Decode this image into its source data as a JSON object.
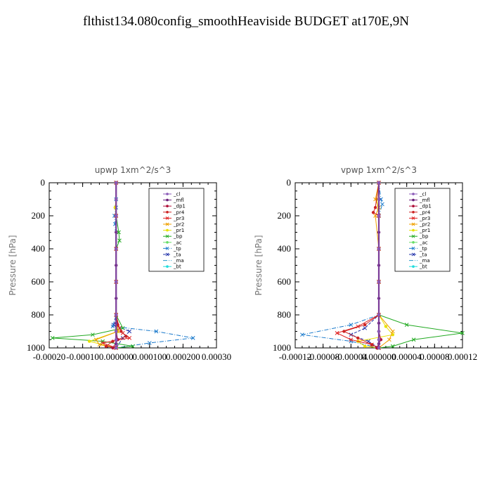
{
  "figure": {
    "title": "flthist134.080config_smoothHeaviside  BUDGET at170E,9N"
  },
  "chart_data": [
    {
      "type": "line",
      "title": "upwp   1xm^2/s^3",
      "ylabel": "Pressure [hPa]",
      "xlabel": "",
      "y_reversed": true,
      "ylim": [
        0,
        1000
      ],
      "xlim": [
        -0.0002,
        0.0003
      ],
      "xtick_labels": [
        "-0.00020",
        "-0.00010",
        "0.000000",
        "0.000100",
        "0.000200",
        "0.00030"
      ],
      "ytick_labels": [
        "0",
        "200",
        "400",
        "600",
        "800",
        "1000"
      ],
      "grid": false,
      "legend_position": "top-right",
      "series": [
        {
          "name": "_cl",
          "color": "#8a5ab8",
          "marker": "circle",
          "style": "solid",
          "y": [
            0,
            100,
            200,
            400,
            600,
            800,
            900,
            950,
            1000
          ],
          "x": [
            0,
            0,
            0,
            0,
            0,
            0,
            0,
            0,
            0
          ]
        },
        {
          "name": "_mfl",
          "color": "#6a1f7a",
          "marker": "circle",
          "style": "solid",
          "y": [
            0,
            100,
            200,
            300,
            400,
            500,
            600,
            700,
            800,
            850,
            900,
            950,
            975,
            1000
          ],
          "x": [
            0,
            0,
            0,
            0,
            0,
            0,
            0,
            0,
            0,
            0,
            0,
            0,
            0,
            0
          ]
        },
        {
          "name": "_dp1",
          "color": "#b0103a",
          "marker": "circle",
          "style": "solid",
          "y": [
            0,
            200,
            400,
            600,
            800,
            900,
            950,
            1000
          ],
          "x": [
            0,
            0,
            0,
            0,
            0,
            0,
            5e-06,
            -1e-05
          ]
        },
        {
          "name": "_pr4",
          "color": "#cc2222",
          "marker": "circle",
          "style": "solid",
          "y": [
            0,
            200,
            400,
            600,
            800,
            860,
            900,
            930,
            960,
            990,
            1000
          ],
          "x": [
            0,
            0,
            0,
            0,
            0,
            5e-06,
            1.5e-05,
            3e-05,
            -1e-05,
            -3e-05,
            0
          ]
        },
        {
          "name": "_pr3",
          "color": "#e02020",
          "marker": "x",
          "style": "solid",
          "y": [
            0,
            200,
            400,
            600,
            800,
            880,
            910,
            940,
            970,
            1000
          ],
          "x": [
            0,
            0,
            0,
            0,
            0,
            1e-05,
            2e-05,
            4e-05,
            -4e-05,
            0
          ]
        },
        {
          "name": "_pr2",
          "color": "#f0a000",
          "marker": "x",
          "style": "solid",
          "y": [
            0,
            200,
            400,
            600,
            800,
            900,
            950,
            980,
            1000
          ],
          "x": [
            0,
            0,
            0,
            0,
            0,
            5e-06,
            -6e-05,
            -5e-05,
            0
          ]
        },
        {
          "name": "_pr1",
          "color": "#e8e000",
          "marker": "circle",
          "style": "solid",
          "y": [
            0,
            100,
            150,
            200,
            400,
            600,
            800,
            900,
            960,
            1000
          ],
          "x": [
            0,
            0,
            -3e-06,
            0,
            0,
            0,
            0,
            5e-06,
            -8e-05,
            0
          ]
        },
        {
          "name": "_bp",
          "color": "#22aa22",
          "marker": "x",
          "style": "solid",
          "y": [
            0,
            200,
            300,
            350,
            400,
            600,
            800,
            880,
            920,
            940,
            960,
            990,
            1000
          ],
          "x": [
            0,
            0,
            8e-06,
            1e-05,
            0,
            0,
            0,
            2e-05,
            -7e-05,
            -0.00019,
            -4e-05,
            5e-05,
            0
          ]
        },
        {
          "name": "_ac",
          "color": "#66dd66",
          "marker": "circle",
          "style": "solid",
          "y": [
            0,
            200,
            400,
            600,
            800,
            900,
            1000
          ],
          "x": [
            0,
            0,
            0,
            0,
            0,
            3e-06,
            0
          ]
        },
        {
          "name": "_tp",
          "color": "#1a7acc",
          "marker": "x",
          "style": "dashdot",
          "y": [
            0,
            100,
            150,
            200,
            250,
            400,
            600,
            800,
            870,
            900,
            940,
            970,
            1000
          ],
          "x": [
            0,
            0,
            0,
            -5e-06,
            -3e-06,
            0,
            0,
            0,
            -1e-05,
            0.00012,
            0.00023,
            0.0001,
            0
          ]
        },
        {
          "name": "_ta",
          "color": "#2233aa",
          "marker": "x",
          "style": "dashed",
          "y": [
            0,
            200,
            400,
            600,
            800,
            860,
            900,
            940,
            1000
          ],
          "x": [
            0,
            0,
            0,
            0,
            0,
            -8e-06,
            4e-05,
            2e-05,
            0
          ]
        },
        {
          "name": "_ma",
          "color": "#2299cc",
          "marker": "none",
          "style": "dashdot",
          "y": [
            0,
            200,
            400,
            600,
            800,
            1000
          ],
          "x": [
            0,
            0,
            0,
            0,
            0,
            0
          ]
        },
        {
          "name": "_bt",
          "color": "#22dddd",
          "marker": "circle",
          "style": "solid",
          "y": [
            0,
            200,
            400,
            600,
            800,
            1000
          ],
          "x": [
            0,
            0,
            0,
            0,
            0,
            0
          ]
        }
      ]
    },
    {
      "type": "line",
      "title": "vpwp   1xm^2/s^3",
      "ylabel": "Pressure [hPa]",
      "xlabel": "",
      "y_reversed": true,
      "ylim": [
        0,
        1000
      ],
      "xlim": [
        -0.00012,
        0.00012
      ],
      "xtick_labels": [
        "-0.00012",
        "-0.00008",
        "-0.00004",
        "0.000000",
        "0.00004",
        "0.00008",
        "0.00012"
      ],
      "ytick_labels": [
        "0",
        "200",
        "400",
        "600",
        "800",
        "1000"
      ],
      "grid": false,
      "legend_position": "top-right",
      "series": [
        {
          "name": "_cl",
          "color": "#8a5ab8",
          "marker": "circle",
          "style": "solid",
          "y": [
            0,
            100,
            200,
            400,
            600,
            800,
            900,
            950,
            1000
          ],
          "x": [
            0,
            0,
            0,
            0,
            0,
            0,
            0,
            0,
            0
          ]
        },
        {
          "name": "_mfl",
          "color": "#6a1f7a",
          "marker": "circle",
          "style": "solid",
          "y": [
            0,
            100,
            200,
            300,
            400,
            500,
            600,
            700,
            800,
            850,
            900,
            950,
            975,
            1000
          ],
          "x": [
            0,
            0,
            0,
            0,
            0,
            0,
            0,
            0,
            0,
            0,
            0,
            0,
            0,
            0
          ]
        },
        {
          "name": "_dp1",
          "color": "#b0103a",
          "marker": "circle",
          "style": "solid",
          "y": [
            0,
            200,
            400,
            600,
            800,
            900,
            950,
            1000
          ],
          "x": [
            0,
            0,
            0,
            0,
            0,
            0,
            3e-06,
            -3e-06
          ]
        },
        {
          "name": "_pr4",
          "color": "#cc2222",
          "marker": "circle",
          "style": "solid",
          "y": [
            0,
            150,
            180,
            200,
            400,
            600,
            800,
            860,
            900,
            940,
            980,
            1000
          ],
          "x": [
            0,
            -5e-06,
            -8e-06,
            0,
            0,
            0,
            0,
            -2e-05,
            -5e-05,
            -3e-05,
            -1e-05,
            0
          ]
        },
        {
          "name": "_pr3",
          "color": "#e02020",
          "marker": "x",
          "style": "solid",
          "y": [
            0,
            200,
            400,
            600,
            800,
            870,
            910,
            950,
            980,
            1000
          ],
          "x": [
            0,
            0,
            0,
            0,
            0,
            -3e-05,
            -6e-05,
            -4e-05,
            -1e-05,
            0
          ]
        },
        {
          "name": "_pr2",
          "color": "#f0a000",
          "marker": "x",
          "style": "solid",
          "y": [
            0,
            100,
            150,
            200,
            400,
            600,
            800,
            900,
            950,
            1000
          ],
          "x": [
            0,
            -5e-06,
            0,
            -5e-06,
            0,
            0,
            0,
            2e-05,
            1.5e-05,
            0
          ]
        },
        {
          "name": "_pr1",
          "color": "#e8e000",
          "marker": "circle",
          "style": "solid",
          "y": [
            0,
            100,
            200,
            400,
            600,
            800,
            870,
            920,
            960,
            990,
            1000
          ],
          "x": [
            0,
            -3e-06,
            0,
            0,
            0,
            0,
            1e-05,
            2e-05,
            -3e-05,
            -2e-05,
            0
          ]
        },
        {
          "name": "_bp",
          "color": "#22aa22",
          "marker": "x",
          "style": "solid",
          "y": [
            0,
            200,
            400,
            600,
            800,
            860,
            910,
            950,
            990,
            1000
          ],
          "x": [
            0,
            0,
            0,
            0,
            0,
            4e-05,
            0.00012,
            5e-05,
            2e-05,
            0
          ]
        },
        {
          "name": "_ac",
          "color": "#66dd66",
          "marker": "circle",
          "style": "solid",
          "y": [
            0,
            200,
            400,
            600,
            800,
            900,
            1000
          ],
          "x": [
            0,
            0,
            0,
            0,
            0,
            0,
            0
          ]
        },
        {
          "name": "_tp",
          "color": "#1a7acc",
          "marker": "x",
          "style": "dashdot",
          "y": [
            0,
            100,
            130,
            200,
            400,
            600,
            800,
            860,
            920,
            960,
            1000
          ],
          "x": [
            0,
            3e-06,
            5e-06,
            0,
            0,
            0,
            0,
            -4e-05,
            -0.00011,
            -4e-05,
            0
          ]
        },
        {
          "name": "_ta",
          "color": "#2233aa",
          "marker": "x",
          "style": "dashed",
          "y": [
            0,
            200,
            400,
            600,
            800,
            880,
            920,
            960,
            1000
          ],
          "x": [
            0,
            0,
            0,
            0,
            0,
            -2e-05,
            -4e-05,
            -1.5e-05,
            0
          ]
        },
        {
          "name": "_ma",
          "color": "#2299cc",
          "marker": "none",
          "style": "dashdot",
          "y": [
            0,
            200,
            400,
            600,
            800,
            1000
          ],
          "x": [
            0,
            0,
            0,
            0,
            0,
            0
          ]
        },
        {
          "name": "_bt",
          "color": "#22dddd",
          "marker": "circle",
          "style": "solid",
          "y": [
            0,
            200,
            400,
            600,
            800,
            1000
          ],
          "x": [
            0,
            0,
            0,
            0,
            0,
            0
          ]
        }
      ]
    }
  ]
}
